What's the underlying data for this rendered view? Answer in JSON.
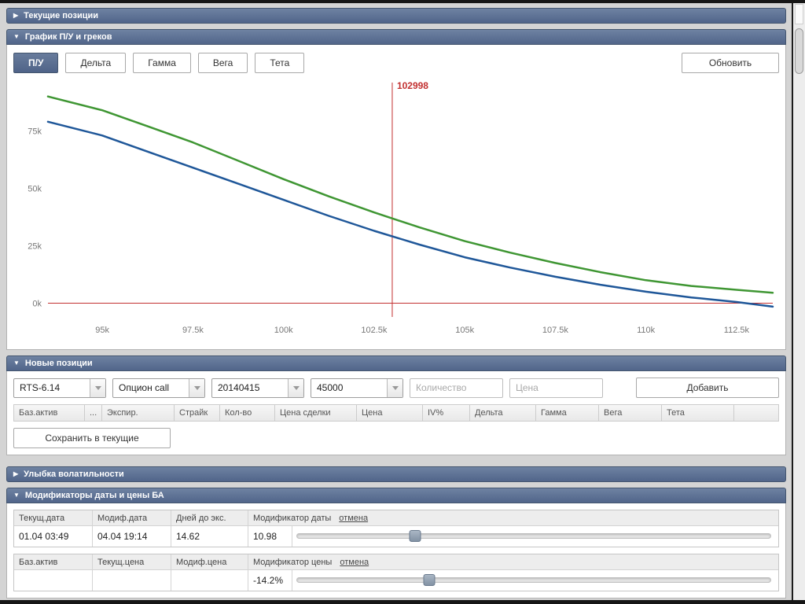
{
  "colors": {
    "header_bg": "#5c7191",
    "accent_red": "#c22f2f",
    "series_green": "#3f9633",
    "series_blue": "#1f5799"
  },
  "panels": {
    "current_positions": {
      "title": "Текущие позиции"
    },
    "chart": {
      "title": "График П/У и греков",
      "tabs": [
        {
          "label": "П/У"
        },
        {
          "label": "Дельта"
        },
        {
          "label": "Гамма"
        },
        {
          "label": "Вега"
        },
        {
          "label": "Тета"
        }
      ],
      "refresh_label": "Обновить"
    },
    "new_positions": {
      "title": "Новые позиции",
      "instrument": "RTS-6.14",
      "option_type": "Опцион call",
      "expiry": "20140415",
      "strike": "45000",
      "quantity_placeholder": "Количество",
      "price_placeholder": "Цена",
      "add_label": "Добавить",
      "table_headers": [
        "Баз.актив",
        "...",
        "Экспир.",
        "Страйк",
        "Кол-во",
        "Цена сделки",
        "Цена",
        "IV%",
        "Дельта",
        "Гамма",
        "Вега",
        "Тета"
      ],
      "save_label": "Сохранить в текущие"
    },
    "volatility_smile": {
      "title": "Улыбка волатильности"
    },
    "modifiers": {
      "title": "Модификаторы даты и цены БА",
      "date_table": {
        "headers": [
          "Текущ.дата",
          "Модиф.дата",
          "Дней до экс."
        ],
        "modifier_label": "Модификатор даты",
        "cancel_label": "отмена",
        "current_date": "01.04 03:49",
        "modified_date": "04.04 19:14",
        "days_to_exp": "14.62",
        "modifier_value": "10.98",
        "slider_percent": 25
      },
      "price_table": {
        "headers": [
          "Баз.актив",
          "Текущ.цена",
          "Модиф.цена"
        ],
        "modifier_label": "Модификатор цены",
        "cancel_label": "отмена",
        "base_asset": "",
        "current_price": "",
        "modified_price": "",
        "modifier_value": "-14.2%",
        "slider_percent": 28
      }
    }
  },
  "chart_data": {
    "type": "line",
    "title": "",
    "xlim": [
      93.5,
      113.5
    ],
    "ylim": [
      -6,
      94
    ],
    "x_ticks": [
      "95k",
      "97.5k",
      "100k",
      "102.5k",
      "105k",
      "107.5k",
      "110k",
      "112.5k"
    ],
    "x_tick_values": [
      95,
      97.5,
      100,
      102.5,
      105,
      107.5,
      110,
      112.5
    ],
    "y_ticks": [
      "75k",
      "50k",
      "25k",
      "0k"
    ],
    "y_tick_values": [
      75,
      50,
      25,
      0
    ],
    "grid": false,
    "legend": false,
    "series": [
      {
        "name": "green-line",
        "color": "#3f9633",
        "x": [
          93.5,
          95,
          96.25,
          97.5,
          98.75,
          100,
          101.25,
          102.5,
          103.75,
          105,
          106.25,
          107.5,
          108.75,
          110,
          111.25,
          112.5,
          113.5
        ],
        "values": [
          90,
          84,
          77,
          70,
          62,
          54,
          46.5,
          39.5,
          33,
          27,
          22,
          17.5,
          13.5,
          10,
          7.5,
          5.8,
          4.5
        ]
      },
      {
        "name": "blue-line",
        "color": "#1f5799",
        "x": [
          93.5,
          95,
          96.25,
          97.5,
          98.75,
          100,
          101.25,
          102.5,
          103.75,
          105,
          106.25,
          107.5,
          108.75,
          110,
          111.25,
          112.5,
          113.5
        ],
        "values": [
          79,
          73,
          66,
          59,
          52,
          45,
          38,
          31.5,
          25.5,
          20,
          15.5,
          11.5,
          8,
          5,
          2.5,
          0.5,
          -1.5
        ]
      }
    ],
    "vline": {
      "x": 103.0,
      "label": "102998",
      "color": "#c22f2f"
    },
    "hline": {
      "y": 0,
      "color": "#c22f2f"
    }
  }
}
